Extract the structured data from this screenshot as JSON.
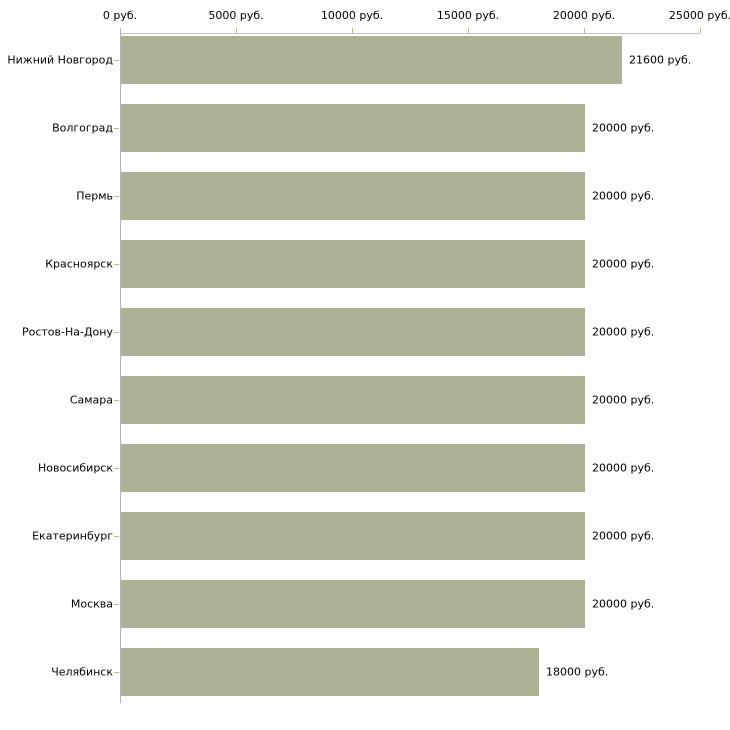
{
  "chart_data": {
    "type": "bar",
    "orientation": "horizontal",
    "title": "",
    "xlabel": "",
    "ylabel": "",
    "categories": [
      "Нижний Новгород",
      "Волгоград",
      "Пермь",
      "Красноярск",
      "Ростов-На-Дону",
      "Самара",
      "Новосибирск",
      "Екатеринбург",
      "Москва",
      "Челябинск"
    ],
    "values": [
      21600,
      20000,
      20000,
      20000,
      20000,
      20000,
      20000,
      20000,
      20000,
      18000
    ],
    "value_labels": [
      "21600 руб.",
      "20000 руб.",
      "20000 руб.",
      "20000 руб.",
      "20000 руб.",
      "20000 руб.",
      "20000 руб.",
      "20000 руб.",
      "20000 руб.",
      "18000 руб."
    ],
    "unit": "руб.",
    "x_tick_labels": [
      "0 руб.",
      "5000 руб.",
      "10000 руб.",
      "15000 руб.",
      "20000 руб.",
      "25000 руб."
    ],
    "x_tick_values": [
      0,
      5000,
      10000,
      15000,
      20000,
      25000
    ],
    "xlim": [
      0,
      25000
    ],
    "grid": false,
    "legend": false,
    "colors": {
      "bar_fill": "#abb296",
      "axis_line": "#c2c2c2",
      "y_axis_line": "#b3b3b3",
      "tick_mark": "#b8bc92",
      "text": "#000000",
      "background": "#ffffff"
    }
  }
}
